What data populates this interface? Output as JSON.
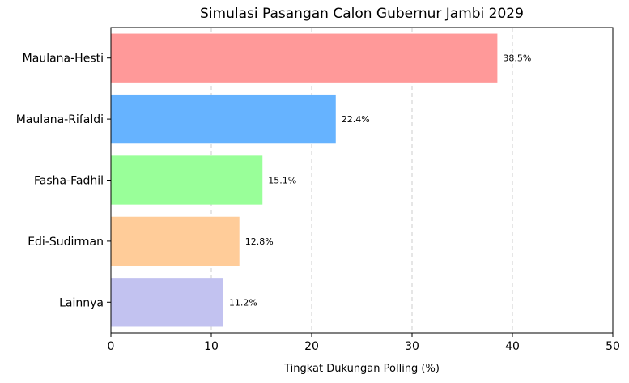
{
  "chart_data": {
    "type": "bar",
    "orientation": "horizontal",
    "title": "Simulasi Pasangan Calon Gubernur Jambi 2029",
    "xlabel": "Tingkat Dukungan Polling (%)",
    "ylabel": "",
    "categories": [
      "Maulana-Hesti",
      "Maulana-Rifaldi",
      "Fasha-Fadhil",
      "Edi-Sudirman",
      "Lainnya"
    ],
    "values": [
      38.5,
      22.4,
      15.1,
      12.8,
      11.2
    ],
    "value_labels": [
      "38.5%",
      "22.4%",
      "15.1%",
      "12.8%",
      "11.2%"
    ],
    "colors": [
      "#ff9999",
      "#66b3ff",
      "#99ff99",
      "#ffcc99",
      "#c2c2f0"
    ],
    "xlim": [
      0,
      50
    ],
    "xticks": [
      0,
      10,
      20,
      30,
      40,
      50
    ],
    "xtick_labels": [
      "0",
      "10",
      "20",
      "30",
      "40",
      "50"
    ],
    "grid": "x-dashed"
  }
}
